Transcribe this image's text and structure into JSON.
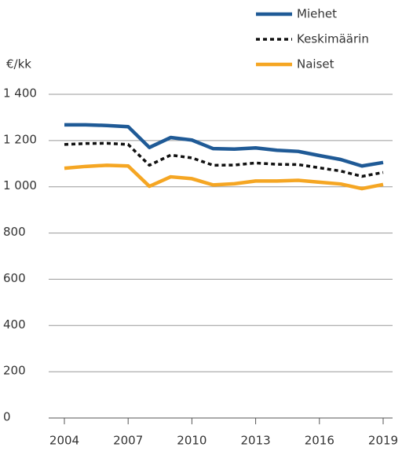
{
  "chart_data": {
    "type": "line",
    "y_axis_label": "€/kk",
    "x": [
      2004,
      2005,
      2006,
      2007,
      2008,
      2009,
      2010,
      2011,
      2012,
      2013,
      2014,
      2015,
      2016,
      2017,
      2018,
      2019
    ],
    "xlim": [
      2004,
      2019
    ],
    "xticks": [
      2004,
      2007,
      2010,
      2013,
      2016,
      2019
    ],
    "ylim": [
      0,
      1400
    ],
    "yticks": [
      0,
      200,
      400,
      600,
      800,
      {
        "value": 1000,
        "label": "1 000"
      },
      {
        "value": 1200,
        "label": "1 200"
      },
      {
        "value": 1400,
        "label": "1 400"
      }
    ],
    "grid": true,
    "legend": "top-right",
    "series": [
      {
        "name": "Miehet",
        "color": "#1f5a96",
        "style": "solid",
        "values": [
          1268,
          1268,
          1265,
          1260,
          1170,
          1213,
          1202,
          1165,
          1163,
          1168,
          1158,
          1153,
          1135,
          1118,
          1090,
          1105
        ]
      },
      {
        "name": "Keskimäärin",
        "color": "#111111",
        "style": "dashed",
        "values": [
          1183,
          1187,
          1188,
          1183,
          1093,
          1137,
          1125,
          1093,
          1094,
          1103,
          1097,
          1096,
          1082,
          1068,
          1045,
          1062
        ]
      },
      {
        "name": "Naiset",
        "color": "#f5a623",
        "style": "solid",
        "values": [
          1080,
          1088,
          1093,
          1090,
          1002,
          1043,
          1035,
          1008,
          1013,
          1025,
          1025,
          1028,
          1020,
          1012,
          992,
          1010
        ]
      }
    ]
  }
}
